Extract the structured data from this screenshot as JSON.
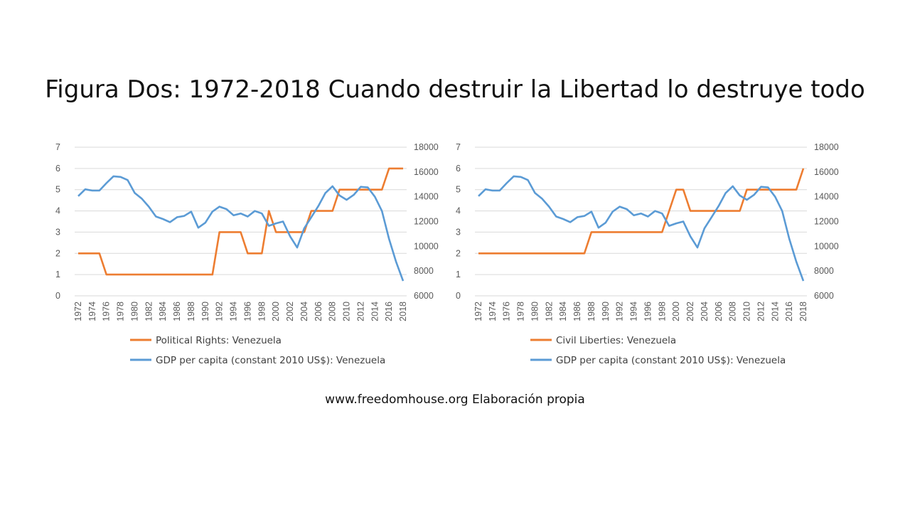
{
  "slide": {
    "title": "Figura Dos: 1972-2018 Cuando destruir  la Libertad lo destruye todo",
    "source_note": "www.freedomhouse.org  Elaboración propia"
  },
  "colors": {
    "orange": "#ED7D31",
    "blue": "#5B9BD5",
    "grid": "#D9D9D9"
  },
  "chart_data": [
    {
      "type": "line",
      "x": [
        1972,
        1973,
        1974,
        1975,
        1976,
        1977,
        1978,
        1979,
        1980,
        1981,
        1982,
        1983,
        1984,
        1985,
        1986,
        1987,
        1988,
        1989,
        1990,
        1991,
        1992,
        1993,
        1994,
        1995,
        1996,
        1997,
        1998,
        1999,
        2000,
        2001,
        2002,
        2003,
        2004,
        2005,
        2006,
        2007,
        2008,
        2009,
        2010,
        2011,
        2012,
        2013,
        2014,
        2015,
        2016,
        2017,
        2018
      ],
      "x_tick_labels": [
        "1972",
        "1974",
        "1976",
        "1978",
        "1980",
        "1982",
        "1984",
        "1986",
        "1988",
        "1990",
        "1992",
        "1994",
        "1996",
        "1998",
        "2000",
        "2002",
        "2004",
        "2006",
        "2008",
        "2010",
        "2012",
        "2014",
        "2016",
        "2018"
      ],
      "y_left": {
        "min": 0,
        "max": 7,
        "ticks": [
          "0",
          "1",
          "2",
          "3",
          "4",
          "5",
          "6",
          "7"
        ]
      },
      "y_right": {
        "min": 6000,
        "max": 18000,
        "ticks": [
          "6000",
          "8000",
          "10000",
          "12000",
          "14000",
          "16000",
          "18000"
        ]
      },
      "series": [
        {
          "name": "Political Rights: Venezuela",
          "axis": "left",
          "color": "#ED7D31",
          "values": [
            2,
            2,
            2,
            2,
            1,
            1,
            1,
            1,
            1,
            1,
            1,
            1,
            1,
            1,
            1,
            1,
            1,
            1,
            1,
            1,
            3,
            3,
            3,
            3,
            2,
            2,
            2,
            4,
            3,
            3,
            3,
            3,
            3,
            4,
            4,
            4,
            4,
            5,
            5,
            5,
            5,
            5,
            5,
            5,
            6,
            6,
            6
          ]
        },
        {
          "name": "GDP per capita (constant 2010 US$): Venezuela",
          "axis": "right",
          "color": "#5B9BD5",
          "values": [
            14050,
            14600,
            14500,
            14500,
            15100,
            15650,
            15600,
            15350,
            14300,
            13850,
            13200,
            12400,
            12200,
            11950,
            12350,
            12450,
            12800,
            11500,
            11900,
            12800,
            13200,
            13000,
            12500,
            12650,
            12400,
            12850,
            12650,
            11650,
            11850,
            12000,
            10800,
            9900,
            11450,
            12350,
            13250,
            14300,
            14850,
            14100,
            13750,
            14150,
            14800,
            14750,
            14000,
            12850,
            10600,
            8750,
            7200
          ]
        }
      ],
      "legend_position": "bottom",
      "grid": true
    },
    {
      "type": "line",
      "x": [
        1972,
        1973,
        1974,
        1975,
        1976,
        1977,
        1978,
        1979,
        1980,
        1981,
        1982,
        1983,
        1984,
        1985,
        1986,
        1987,
        1988,
        1989,
        1990,
        1991,
        1992,
        1993,
        1994,
        1995,
        1996,
        1997,
        1998,
        1999,
        2000,
        2001,
        2002,
        2003,
        2004,
        2005,
        2006,
        2007,
        2008,
        2009,
        2010,
        2011,
        2012,
        2013,
        2014,
        2015,
        2016,
        2017,
        2018
      ],
      "x_tick_labels": [
        "1972",
        "1974",
        "1976",
        "1978",
        "1980",
        "1982",
        "1984",
        "1986",
        "1988",
        "1990",
        "1992",
        "1994",
        "1996",
        "1998",
        "2000",
        "2002",
        "2004",
        "2006",
        "2008",
        "2010",
        "2012",
        "2014",
        "2016",
        "2018"
      ],
      "y_left": {
        "min": 0,
        "max": 7,
        "ticks": [
          "0",
          "1",
          "2",
          "3",
          "4",
          "5",
          "6",
          "7"
        ]
      },
      "y_right": {
        "min": 6000,
        "max": 18000,
        "ticks": [
          "6000",
          "8000",
          "10000",
          "12000",
          "14000",
          "16000",
          "18000"
        ]
      },
      "series": [
        {
          "name": "Civil Liberties: Venezuela",
          "axis": "left",
          "color": "#ED7D31",
          "values": [
            2,
            2,
            2,
            2,
            2,
            2,
            2,
            2,
            2,
            2,
            2,
            2,
            2,
            2,
            2,
            2,
            3,
            3,
            3,
            3,
            3,
            3,
            3,
            3,
            3,
            3,
            3,
            4,
            5,
            5,
            4,
            4,
            4,
            4,
            4,
            4,
            4,
            4,
            5,
            5,
            5,
            5,
            5,
            5,
            5,
            5,
            6
          ]
        },
        {
          "name": "GDP per capita (constant 2010 US$): Venezuela",
          "axis": "right",
          "color": "#5B9BD5",
          "values": [
            14050,
            14600,
            14500,
            14500,
            15100,
            15650,
            15600,
            15350,
            14300,
            13850,
            13200,
            12400,
            12200,
            11950,
            12350,
            12450,
            12800,
            11500,
            11900,
            12800,
            13200,
            13000,
            12500,
            12650,
            12400,
            12850,
            12650,
            11650,
            11850,
            12000,
            10800,
            9900,
            11450,
            12350,
            13250,
            14300,
            14850,
            14100,
            13750,
            14150,
            14800,
            14750,
            14000,
            12850,
            10600,
            8750,
            7200
          ]
        }
      ],
      "legend_position": "bottom",
      "grid": true
    }
  ]
}
